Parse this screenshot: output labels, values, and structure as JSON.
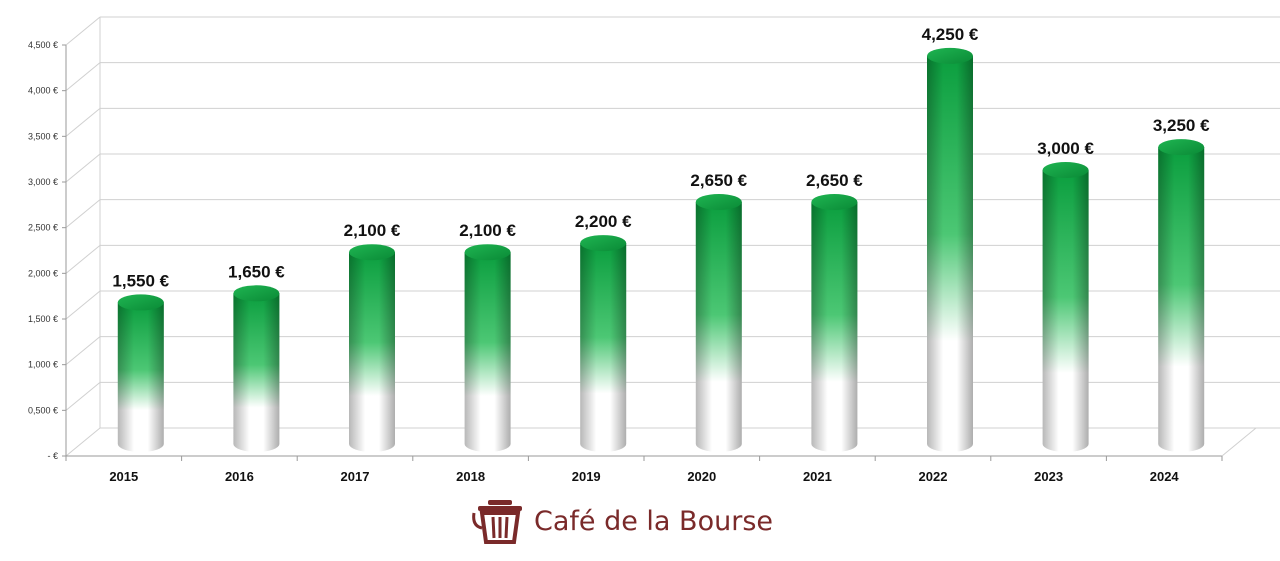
{
  "chart_data": {
    "type": "bar",
    "categories": [
      "2015",
      "2016",
      "2017",
      "2018",
      "2019",
      "2020",
      "2021",
      "2022",
      "2023",
      "2024"
    ],
    "values": [
      1550,
      1650,
      2100,
      2100,
      2200,
      2650,
      2650,
      4250,
      3000,
      3250
    ],
    "data_labels": [
      "1,550 €",
      "1,650 €",
      "2,100 €",
      "2,100 €",
      "2,200 €",
      "2,650 €",
      "2,650 €",
      "4,250 €",
      "3,000 €",
      "3,250 €"
    ],
    "yticks": [
      0,
      500,
      1000,
      1500,
      2000,
      2500,
      3000,
      3500,
      4000,
      4500
    ],
    "ytick_labels": [
      "- €",
      "0,500 €",
      "1,000 €",
      "1,500 €",
      "2,000 €",
      "2,500 €",
      "3,000 €",
      "3,500 €",
      "4,000 €",
      "4,500 €"
    ],
    "ylim": [
      0,
      4500
    ],
    "grid": true,
    "style": "3d-cylinder",
    "colors": {
      "bar_top": "#0a9e3e",
      "bar_bottom": "#ffffff",
      "grid": "#d0d0d0"
    }
  },
  "brand": {
    "name": "Café de la Bourse",
    "icon": "trash-can-logo-icon",
    "color": "#7a2a2a"
  }
}
